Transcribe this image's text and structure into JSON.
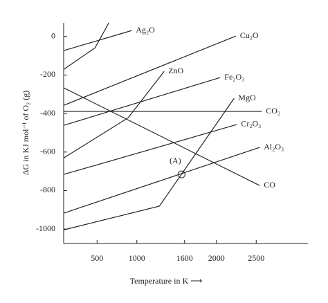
{
  "chart_data": {
    "type": "line",
    "x_label": "Temperature in K ⟶",
    "y_label": "ΔG in KJ mol⁻¹ of O₂ (g)",
    "xlim": [
      80,
      3150
    ],
    "ylim": [
      -1075,
      71
    ],
    "xticks": [
      500,
      1000,
      1600,
      2000,
      2500
    ],
    "yticks": [
      0,
      -200,
      -400,
      -600,
      -800,
      -1000
    ],
    "series": [
      {
        "name": "Ag₂O",
        "color": "#222222",
        "x": [
          83,
          935
        ],
        "values": [
          -73,
          31
        ]
      },
      {
        "color": "#222222",
        "x": [
          83,
          474,
          648
        ],
        "values": [
          -170,
          -59,
          71
        ]
      },
      {
        "name": "Cu₂O",
        "color": "#222222",
        "x": [
          83,
          2243
        ],
        "values": [
          -357,
          2
        ]
      },
      {
        "name": "Fe₂O₃",
        "color": "#222222",
        "x": [
          83,
          2048
        ],
        "values": [
          -461,
          -213
        ]
      },
      {
        "name": "ZnO",
        "color": "#222222",
        "x": [
          83,
          891,
          1343
        ],
        "values": [
          -630,
          -422,
          -181
        ]
      },
      {
        "name": "CO",
        "color": "#222222",
        "x": [
          83,
          2543
        ],
        "values": [
          -267,
          -774
        ]
      },
      {
        "name": "CO₂",
        "color": "#222222",
        "x": [
          83,
          2570
        ],
        "values": [
          -389,
          -389
        ]
      },
      {
        "name": "MgO",
        "color": "#222222",
        "x": [
          83,
          1283,
          2222
        ],
        "values": [
          -1004,
          -881,
          -321
        ]
      },
      {
        "name": "Cr₂O₃",
        "color": "#222222",
        "x": [
          83,
          2257
        ],
        "values": [
          -716,
          -457
        ]
      },
      {
        "name": "Al₂O₃",
        "color": "#222222",
        "x": [
          83,
          2543
        ],
        "values": [
          -917,
          -576
        ]
      }
    ],
    "annotation": {
      "text": "(A)",
      "x": 1561,
      "y": -716
    }
  }
}
